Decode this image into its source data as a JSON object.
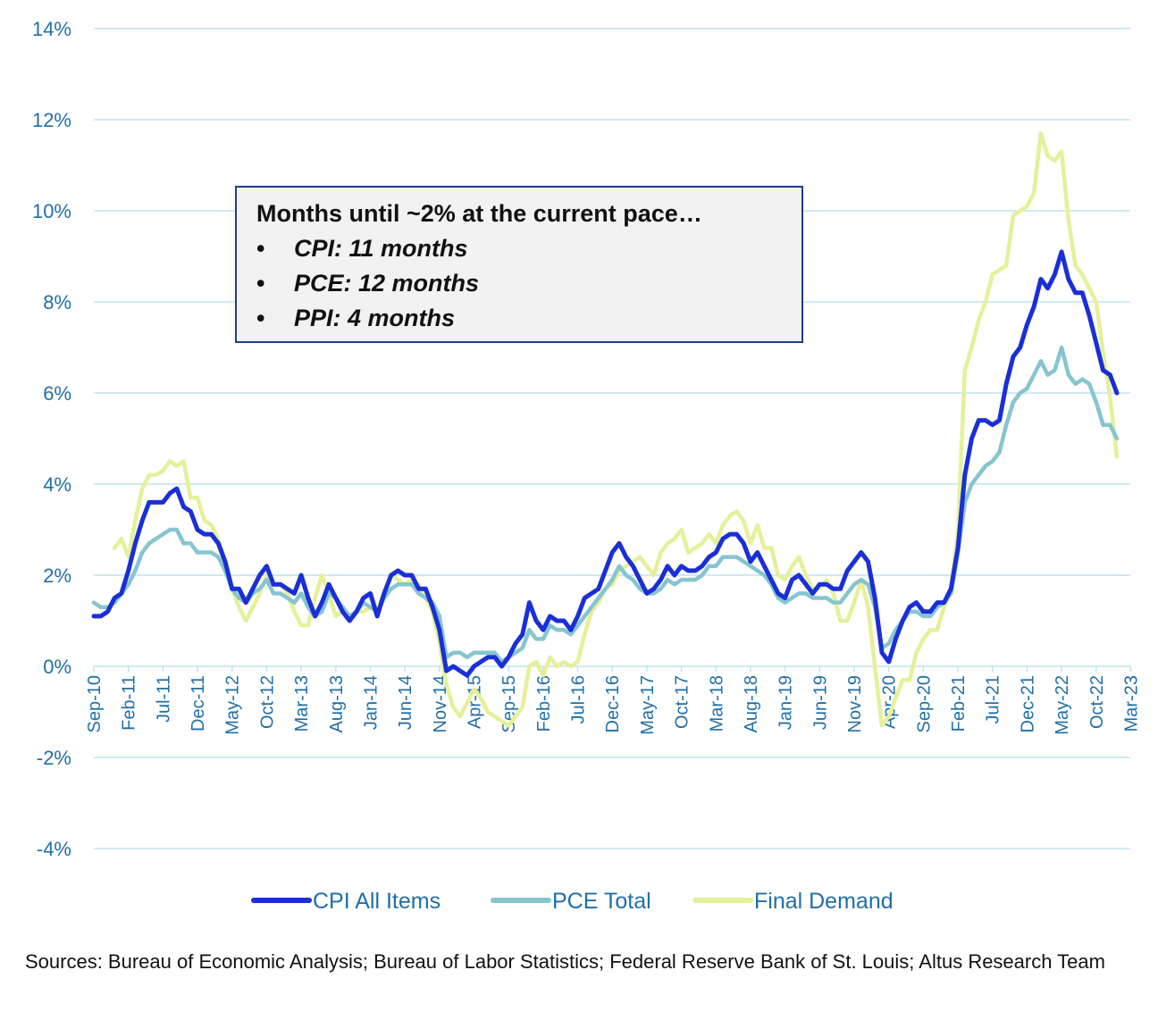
{
  "chart_data": {
    "type": "line",
    "title": "",
    "xlabel": "",
    "ylabel": "",
    "ylim": [
      -4,
      14
    ],
    "yticks": [
      "-4%",
      "-2%",
      "0%",
      "2%",
      "4%",
      "6%",
      "8%",
      "10%",
      "12%",
      "14%"
    ],
    "x_tick_labels": [
      "Sep-10",
      "Feb-11",
      "Jul-11",
      "Dec-11",
      "May-12",
      "Oct-12",
      "Mar-13",
      "Aug-13",
      "Jan-14",
      "Jun-14",
      "Nov-14",
      "Apr-15",
      "Sep-15",
      "Feb-16",
      "Jul-16",
      "Dec-16",
      "May-17",
      "Oct-17",
      "Mar-18",
      "Aug-18",
      "Jan-19",
      "Jun-19",
      "Nov-19",
      "Apr-20",
      "Sep-20",
      "Feb-21",
      "Jul-21",
      "Dec-21",
      "May-22",
      "Oct-22",
      "Mar-23"
    ],
    "grid": true,
    "legend_position": "bottom",
    "series": [
      {
        "name": "CPI All Items",
        "color": "#1a2fd6",
        "values": [
          1.1,
          1.1,
          1.2,
          1.5,
          1.6,
          2.1,
          2.7,
          3.2,
          3.6,
          3.6,
          3.6,
          3.8,
          3.9,
          3.5,
          3.4,
          3.0,
          2.9,
          2.9,
          2.7,
          2.3,
          1.7,
          1.7,
          1.4,
          1.7,
          2.0,
          2.2,
          1.8,
          1.8,
          1.7,
          1.6,
          2.0,
          1.5,
          1.1,
          1.4,
          1.8,
          1.5,
          1.2,
          1.0,
          1.2,
          1.5,
          1.6,
          1.1,
          1.6,
          2.0,
          2.1,
          2.0,
          2.0,
          1.7,
          1.7,
          1.3,
          0.8,
          -0.1,
          0.0,
          -0.1,
          -0.2,
          0.0,
          0.1,
          0.2,
          0.2,
          0.0,
          0.2,
          0.5,
          0.7,
          1.4,
          1.0,
          0.8,
          1.1,
          1.0,
          1.0,
          0.8,
          1.1,
          1.5,
          1.6,
          1.7,
          2.1,
          2.5,
          2.7,
          2.4,
          2.2,
          1.9,
          1.6,
          1.7,
          1.9,
          2.2,
          2.0,
          2.2,
          2.1,
          2.1,
          2.2,
          2.4,
          2.5,
          2.8,
          2.9,
          2.9,
          2.7,
          2.3,
          2.5,
          2.2,
          1.9,
          1.6,
          1.5,
          1.9,
          2.0,
          1.8,
          1.6,
          1.8,
          1.8,
          1.7,
          1.7,
          2.1,
          2.3,
          2.5,
          2.3,
          1.5,
          0.3,
          0.1,
          0.6,
          1.0,
          1.3,
          1.4,
          1.2,
          1.2,
          1.4,
          1.4,
          1.7,
          2.6,
          4.2,
          5.0,
          5.4,
          5.4,
          5.3,
          5.4,
          6.2,
          6.8,
          7.0,
          7.5,
          7.9,
          8.5,
          8.3,
          8.6,
          9.1,
          8.5,
          8.2,
          8.2,
          7.7,
          7.1,
          6.5,
          6.4,
          6.0
        ]
      },
      {
        "name": "PCE Total",
        "color": "#86c5d0",
        "values": [
          1.4,
          1.3,
          1.3,
          1.4,
          1.6,
          1.8,
          2.1,
          2.5,
          2.7,
          2.8,
          2.9,
          3.0,
          3.0,
          2.7,
          2.7,
          2.5,
          2.5,
          2.5,
          2.4,
          2.1,
          1.7,
          1.5,
          1.4,
          1.6,
          1.7,
          1.9,
          1.6,
          1.6,
          1.5,
          1.4,
          1.6,
          1.3,
          1.1,
          1.2,
          1.6,
          1.5,
          1.3,
          1.1,
          1.2,
          1.4,
          1.3,
          1.2,
          1.5,
          1.7,
          1.8,
          1.8,
          1.8,
          1.6,
          1.5,
          1.4,
          1.1,
          0.2,
          0.3,
          0.3,
          0.2,
          0.3,
          0.3,
          0.3,
          0.3,
          0.1,
          0.2,
          0.3,
          0.4,
          0.8,
          0.6,
          0.6,
          0.9,
          0.8,
          0.8,
          0.7,
          0.9,
          1.1,
          1.3,
          1.5,
          1.7,
          1.9,
          2.2,
          2.0,
          1.9,
          1.7,
          1.6,
          1.6,
          1.7,
          1.9,
          1.8,
          1.9,
          1.9,
          1.9,
          2.0,
          2.2,
          2.2,
          2.4,
          2.4,
          2.4,
          2.3,
          2.2,
          2.1,
          2.0,
          1.8,
          1.5,
          1.4,
          1.5,
          1.6,
          1.6,
          1.5,
          1.5,
          1.5,
          1.4,
          1.4,
          1.6,
          1.8,
          1.9,
          1.8,
          1.3,
          0.4,
          0.5,
          0.8,
          1.0,
          1.2,
          1.2,
          1.1,
          1.1,
          1.3,
          1.4,
          1.6,
          2.5,
          3.6,
          4.0,
          4.2,
          4.4,
          4.5,
          4.7,
          5.3,
          5.8,
          6.0,
          6.1,
          6.4,
          6.7,
          6.4,
          6.5,
          7.0,
          6.4,
          6.2,
          6.3,
          6.2,
          5.8,
          5.3,
          5.3,
          5.0
        ]
      },
      {
        "name": "Final Demand",
        "color": "#e6f09a",
        "values": [
          null,
          null,
          null,
          2.6,
          2.8,
          2.4,
          3.2,
          3.9,
          4.2,
          4.2,
          4.3,
          4.5,
          4.4,
          4.5,
          3.7,
          3.7,
          3.2,
          3.1,
          2.8,
          2.3,
          1.7,
          1.3,
          1.0,
          1.3,
          1.6,
          2.0,
          1.8,
          1.8,
          1.6,
          1.2,
          0.9,
          0.9,
          1.5,
          2.0,
          1.6,
          1.1,
          1.2,
          1.1,
          1.2,
          1.2,
          1.3,
          1.3,
          1.6,
          2.0,
          1.9,
          1.8,
          1.9,
          1.8,
          1.5,
          1.2,
          0.5,
          -0.4,
          -0.9,
          -1.1,
          -0.8,
          -0.5,
          -0.7,
          -1.0,
          -1.1,
          -1.2,
          -1.3,
          -1.1,
          -0.9,
          0.0,
          0.1,
          -0.2,
          0.2,
          0.0,
          0.1,
          0.0,
          0.1,
          0.7,
          1.2,
          1.4,
          1.7,
          1.8,
          2.1,
          2.2,
          2.3,
          2.4,
          2.2,
          2.0,
          2.5,
          2.7,
          2.8,
          3.0,
          2.5,
          2.6,
          2.7,
          2.9,
          2.7,
          3.1,
          3.3,
          3.4,
          3.2,
          2.7,
          3.1,
          2.6,
          2.6,
          2.0,
          1.9,
          2.2,
          2.4,
          2.0,
          1.7,
          1.7,
          1.9,
          1.6,
          1.0,
          1.0,
          1.4,
          1.9,
          1.3,
          0.0,
          -1.3,
          -1.1,
          -0.7,
          -0.3,
          -0.3,
          0.3,
          0.6,
          0.8,
          0.8,
          1.3,
          1.7,
          3.0,
          6.5,
          7.0,
          7.6,
          8.0,
          8.6,
          8.7,
          8.8,
          9.9,
          10.0,
          10.1,
          10.4,
          11.7,
          11.2,
          11.1,
          11.3,
          9.8,
          8.8,
          8.6,
          8.3,
          8.0,
          6.9,
          5.9,
          4.6
        ]
      }
    ],
    "annotation": {
      "title": "Months until ~2% at the current pace…",
      "items": [
        "CPI: 11 months",
        "PCE: 12 months",
        "PPI: 4 months"
      ]
    }
  },
  "annotation_bullet": "•",
  "sources": "Sources: Bureau of Economic Analysis; Bureau of Labor Statistics; Federal Reserve Bank of St. Louis; Altus Research Team"
}
